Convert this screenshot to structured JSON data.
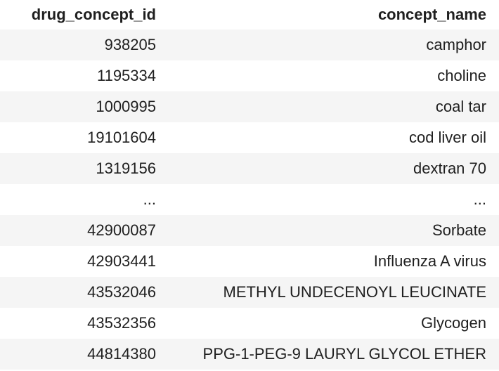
{
  "table": {
    "columns": [
      "drug_concept_id",
      "concept_name"
    ],
    "rows": [
      [
        "938205",
        "camphor"
      ],
      [
        "1195334",
        "choline"
      ],
      [
        "1000995",
        "coal tar"
      ],
      [
        "19101604",
        "cod liver oil"
      ],
      [
        "1319156",
        "dextran 70"
      ],
      [
        "...",
        "..."
      ],
      [
        "42900087",
        "Sorbate"
      ],
      [
        "42903441",
        "Influenza A virus"
      ],
      [
        "43532046",
        "METHYL UNDECENOYL LEUCINATE"
      ],
      [
        "43532356",
        "Glycogen"
      ],
      [
        "44814380",
        "PPG-1-PEG-9 LAURYL GLYCOL ETHER"
      ]
    ]
  }
}
